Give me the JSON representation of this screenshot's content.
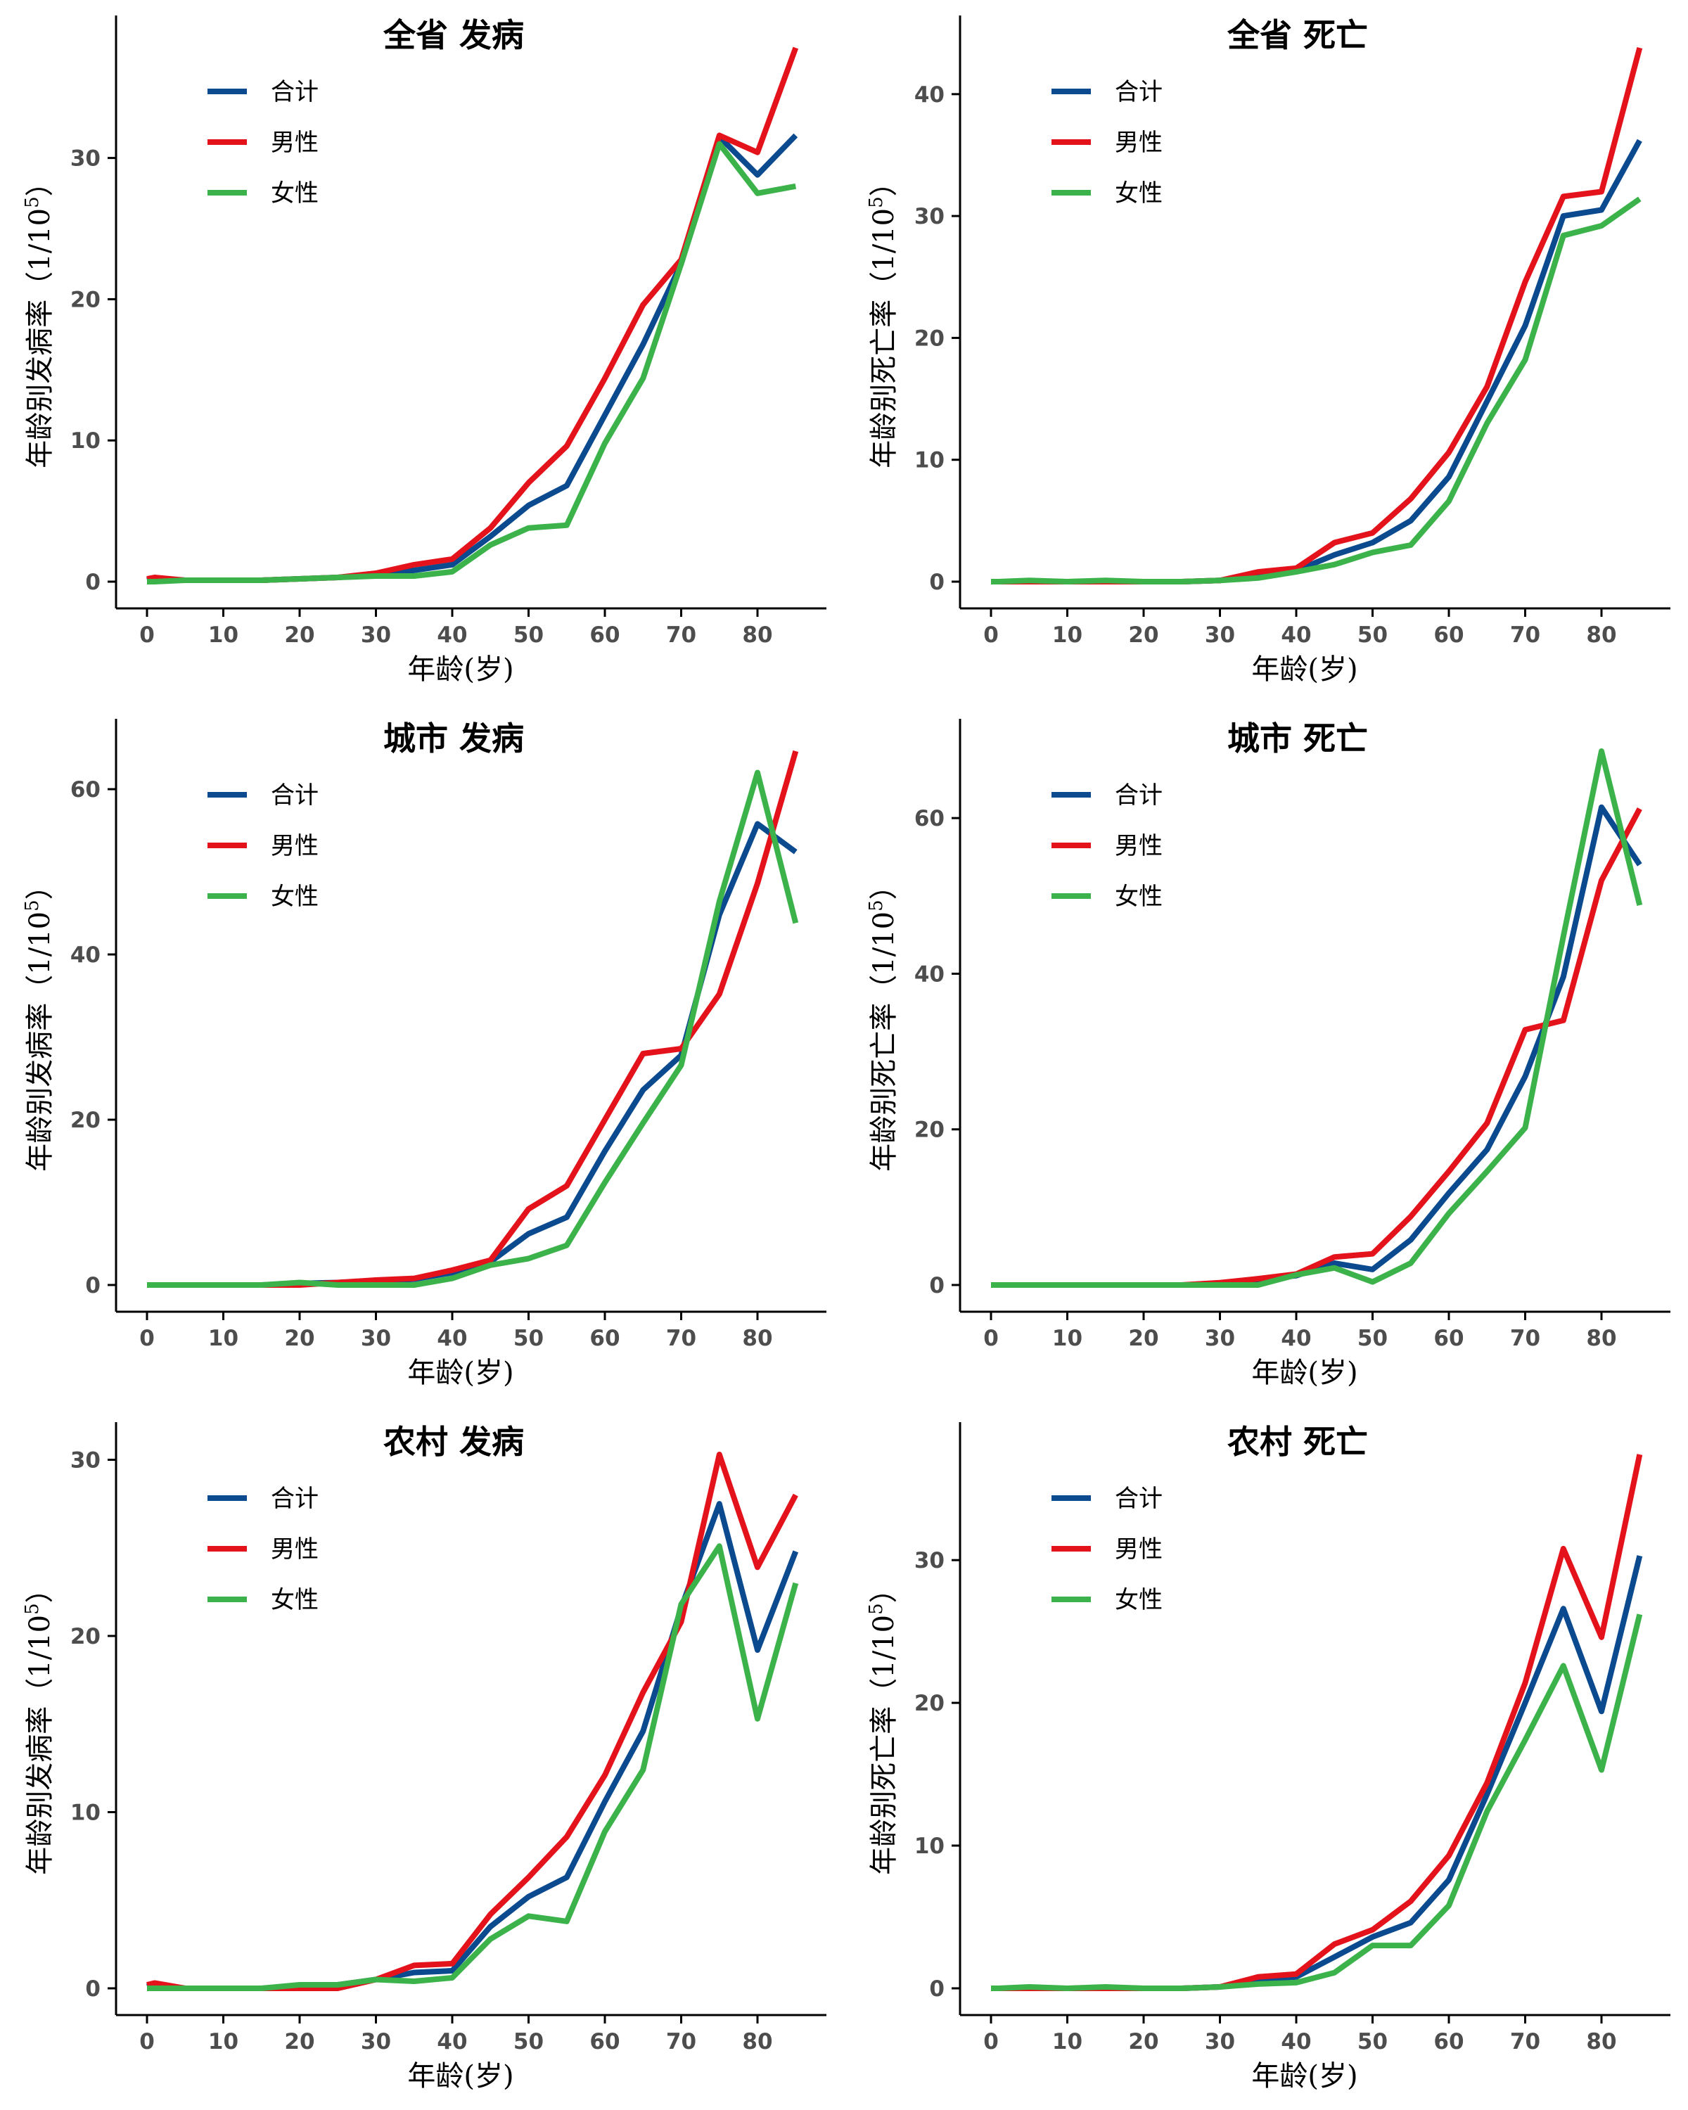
{
  "colors": {
    "total": "#0b4a8f",
    "male": "#e3121b",
    "female": "#3cb34a"
  },
  "chart_data": [
    {
      "type": "line",
      "title": "全省 发病",
      "xlabel": "年龄(岁)",
      "ylabel_main": "年龄别发病率（1/10",
      "ylabel_sup": "5",
      "ylabel_close": "）",
      "xlim": [
        0,
        85
      ],
      "ylim": [
        0,
        37.8
      ],
      "xticks": [
        0,
        10,
        20,
        30,
        40,
        50,
        60,
        70,
        80
      ],
      "yticks": [
        0,
        10,
        20,
        30
      ],
      "x": [
        0,
        1,
        5,
        10,
        15,
        20,
        25,
        30,
        35,
        40,
        45,
        50,
        55,
        60,
        65,
        70,
        75,
        80,
        85
      ],
      "legend_position": "top-left",
      "series": [
        {
          "name": "合计",
          "key": "total",
          "values": [
            0.1,
            0.2,
            0.1,
            0.1,
            0.1,
            0.2,
            0.3,
            0.5,
            0.8,
            1.2,
            3.2,
            5.4,
            6.8,
            11.8,
            16.8,
            22.5,
            31.5,
            28.8,
            31.6
          ]
        },
        {
          "name": "男性",
          "key": "male",
          "values": [
            0.2,
            0.3,
            0.1,
            0.1,
            0.1,
            0.2,
            0.3,
            0.6,
            1.2,
            1.6,
            3.8,
            7.0,
            9.6,
            14.4,
            19.6,
            22.8,
            31.6,
            30.4,
            37.8
          ]
        },
        {
          "name": "女性",
          "key": "female",
          "values": [
            0.0,
            0.0,
            0.1,
            0.1,
            0.1,
            0.2,
            0.3,
            0.4,
            0.4,
            0.7,
            2.6,
            3.8,
            4.0,
            9.8,
            14.4,
            22.5,
            31.0,
            27.5,
            28.0
          ]
        }
      ]
    },
    {
      "type": "line",
      "title": "全省 死亡",
      "xlabel": "年龄(岁)",
      "ylabel_main": "年龄别死亡率（1/10",
      "ylabel_sup": "5",
      "ylabel_close": "）",
      "xlim": [
        0,
        85
      ],
      "ylim": [
        0,
        43.8
      ],
      "xticks": [
        0,
        10,
        20,
        30,
        40,
        50,
        60,
        70,
        80
      ],
      "yticks": [
        0,
        10,
        20,
        30,
        40
      ],
      "x": [
        0,
        1,
        5,
        10,
        15,
        20,
        25,
        30,
        35,
        40,
        45,
        50,
        55,
        60,
        65,
        70,
        75,
        80,
        85
      ],
      "legend_position": "top-left",
      "series": [
        {
          "name": "合计",
          "key": "total",
          "values": [
            0.0,
            0.0,
            0.0,
            0.0,
            0.0,
            0.0,
            0.0,
            0.1,
            0.5,
            0.9,
            2.2,
            3.2,
            5.0,
            8.6,
            14.8,
            21.0,
            30.0,
            30.5,
            36.2
          ]
        },
        {
          "name": "男性",
          "key": "male",
          "values": [
            0.0,
            0.0,
            0.0,
            0.0,
            0.0,
            0.0,
            0.0,
            0.1,
            0.8,
            1.1,
            3.2,
            4.0,
            6.8,
            10.6,
            16.0,
            24.6,
            31.6,
            32.0,
            43.8
          ]
        },
        {
          "name": "女性",
          "key": "female",
          "values": [
            0.0,
            0.0,
            0.1,
            0.0,
            0.1,
            0.0,
            0.0,
            0.1,
            0.3,
            0.8,
            1.4,
            2.4,
            3.0,
            6.6,
            13.0,
            18.2,
            28.4,
            29.2,
            31.4
          ]
        }
      ]
    },
    {
      "type": "line",
      "title": "城市 发病",
      "xlabel": "年龄(岁)",
      "ylabel_main": "年龄别发病率（1/10",
      "ylabel_sup": "5",
      "ylabel_close": "）",
      "xlim": [
        0,
        85
      ],
      "ylim": [
        0,
        64.6
      ],
      "xticks": [
        0,
        10,
        20,
        30,
        40,
        50,
        60,
        70,
        80
      ],
      "yticks": [
        0,
        20,
        40,
        60
      ],
      "x": [
        0,
        1,
        5,
        10,
        15,
        20,
        25,
        30,
        35,
        40,
        45,
        50,
        55,
        60,
        65,
        70,
        75,
        80,
        85
      ],
      "legend_position": "top-left",
      "series": [
        {
          "name": "合计",
          "key": "total",
          "values": [
            0.0,
            0.0,
            0.0,
            0.0,
            0.0,
            0.2,
            0.3,
            0.5,
            0.7,
            1.5,
            2.8,
            6.2,
            8.2,
            16.2,
            23.6,
            27.8,
            44.8,
            55.8,
            52.4
          ]
        },
        {
          "name": "男性",
          "key": "male",
          "values": [
            0.0,
            0.0,
            0.0,
            0.0,
            0.0,
            0.0,
            0.3,
            0.6,
            0.8,
            1.8,
            3.0,
            9.2,
            12.0,
            20.0,
            28.0,
            28.6,
            35.2,
            48.6,
            64.6
          ]
        },
        {
          "name": "女性",
          "key": "female",
          "values": [
            0.0,
            0.0,
            0.0,
            0.0,
            0.0,
            0.3,
            0.0,
            0.0,
            0.0,
            0.8,
            2.4,
            3.2,
            4.8,
            12.4,
            19.6,
            26.6,
            46.4,
            62.0,
            43.8
          ]
        }
      ]
    },
    {
      "type": "line",
      "title": "城市 死亡",
      "xlabel": "年龄(岁)",
      "ylabel_main": "年龄别死亡率（1/10",
      "ylabel_sup": "5",
      "ylabel_close": "）",
      "xlim": [
        0,
        85
      ],
      "ylim": [
        0,
        68.6
      ],
      "xticks": [
        0,
        10,
        20,
        30,
        40,
        50,
        60,
        70,
        80
      ],
      "yticks": [
        0,
        20,
        40,
        60
      ],
      "x": [
        0,
        1,
        5,
        10,
        15,
        20,
        25,
        30,
        35,
        40,
        45,
        50,
        55,
        60,
        65,
        70,
        75,
        80,
        85
      ],
      "legend_position": "top-left",
      "series": [
        {
          "name": "合计",
          "key": "total",
          "values": [
            0.0,
            0.0,
            0.0,
            0.0,
            0.0,
            0.0,
            0.0,
            0.1,
            0.6,
            1.2,
            2.8,
            2.0,
            5.8,
            11.8,
            17.4,
            26.8,
            39.6,
            61.4,
            54.0
          ]
        },
        {
          "name": "男性",
          "key": "male",
          "values": [
            0.0,
            0.0,
            0.0,
            0.0,
            0.0,
            0.0,
            0.0,
            0.3,
            0.8,
            1.4,
            3.6,
            4.0,
            8.8,
            14.6,
            20.8,
            32.8,
            34.0,
            52.0,
            61.2
          ]
        },
        {
          "name": "女性",
          "key": "female",
          "values": [
            0.0,
            0.0,
            0.0,
            0.0,
            0.0,
            0.0,
            0.0,
            0.0,
            0.0,
            1.3,
            2.2,
            0.4,
            2.8,
            9.2,
            14.6,
            20.2,
            44.8,
            68.6,
            48.8
          ]
        }
      ]
    },
    {
      "type": "line",
      "title": "农村 发病",
      "xlabel": "年龄(岁)",
      "ylabel_main": "年龄别发病率（1/10",
      "ylabel_sup": "5",
      "ylabel_close": "）",
      "xlim": [
        0,
        85
      ],
      "ylim": [
        0,
        30.3
      ],
      "xticks": [
        0,
        10,
        20,
        30,
        40,
        50,
        60,
        70,
        80
      ],
      "yticks": [
        0,
        10,
        20,
        30
      ],
      "x": [
        0,
        1,
        5,
        10,
        15,
        20,
        25,
        30,
        35,
        40,
        45,
        50,
        55,
        60,
        65,
        70,
        75,
        80,
        85
      ],
      "legend_position": "top-left",
      "series": [
        {
          "name": "合计",
          "key": "total",
          "values": [
            0.1,
            0.2,
            0.0,
            0.0,
            0.0,
            0.1,
            0.2,
            0.5,
            0.9,
            1.0,
            3.5,
            5.2,
            6.3,
            10.6,
            14.6,
            21.6,
            27.5,
            19.2,
            24.8
          ]
        },
        {
          "name": "男性",
          "key": "male",
          "values": [
            0.2,
            0.3,
            0.0,
            0.0,
            0.0,
            0.0,
            0.0,
            0.5,
            1.3,
            1.4,
            4.2,
            6.3,
            8.6,
            12.1,
            16.8,
            20.8,
            30.3,
            23.9,
            28.0
          ]
        },
        {
          "name": "女性",
          "key": "female",
          "values": [
            0.0,
            0.0,
            0.0,
            0.0,
            0.0,
            0.2,
            0.2,
            0.5,
            0.4,
            0.6,
            2.8,
            4.1,
            3.8,
            8.9,
            12.4,
            21.8,
            25.1,
            15.3,
            23.0
          ]
        }
      ]
    },
    {
      "type": "line",
      "title": "农村 死亡",
      "xlabel": "年龄(岁)",
      "ylabel_main": "年龄别死亡率（1/10",
      "ylabel_sup": "5",
      "ylabel_close": "）",
      "xlim": [
        0,
        85
      ],
      "ylim": [
        0,
        37.4
      ],
      "xticks": [
        0,
        10,
        20,
        30,
        40,
        50,
        60,
        70,
        80
      ],
      "yticks": [
        0,
        10,
        20,
        30
      ],
      "x": [
        0,
        1,
        5,
        10,
        15,
        20,
        25,
        30,
        35,
        40,
        45,
        50,
        55,
        60,
        65,
        70,
        75,
        80,
        85
      ],
      "legend_position": "top-left",
      "series": [
        {
          "name": "合计",
          "key": "total",
          "values": [
            0.0,
            0.0,
            0.0,
            0.0,
            0.0,
            0.0,
            0.0,
            0.1,
            0.6,
            0.8,
            2.2,
            3.6,
            4.6,
            7.6,
            13.6,
            20.0,
            26.6,
            19.4,
            30.3
          ]
        },
        {
          "name": "男性",
          "key": "male",
          "values": [
            0.0,
            0.0,
            0.0,
            0.0,
            0.0,
            0.0,
            0.0,
            0.1,
            0.8,
            1.0,
            3.1,
            4.1,
            6.1,
            9.3,
            14.4,
            21.4,
            30.8,
            24.6,
            37.4
          ]
        },
        {
          "name": "女性",
          "key": "female",
          "values": [
            0.0,
            0.0,
            0.1,
            0.0,
            0.1,
            0.0,
            0.0,
            0.1,
            0.3,
            0.4,
            1.1,
            3.0,
            3.0,
            5.8,
            12.4,
            17.4,
            22.6,
            15.3,
            26.2
          ]
        }
      ]
    }
  ]
}
